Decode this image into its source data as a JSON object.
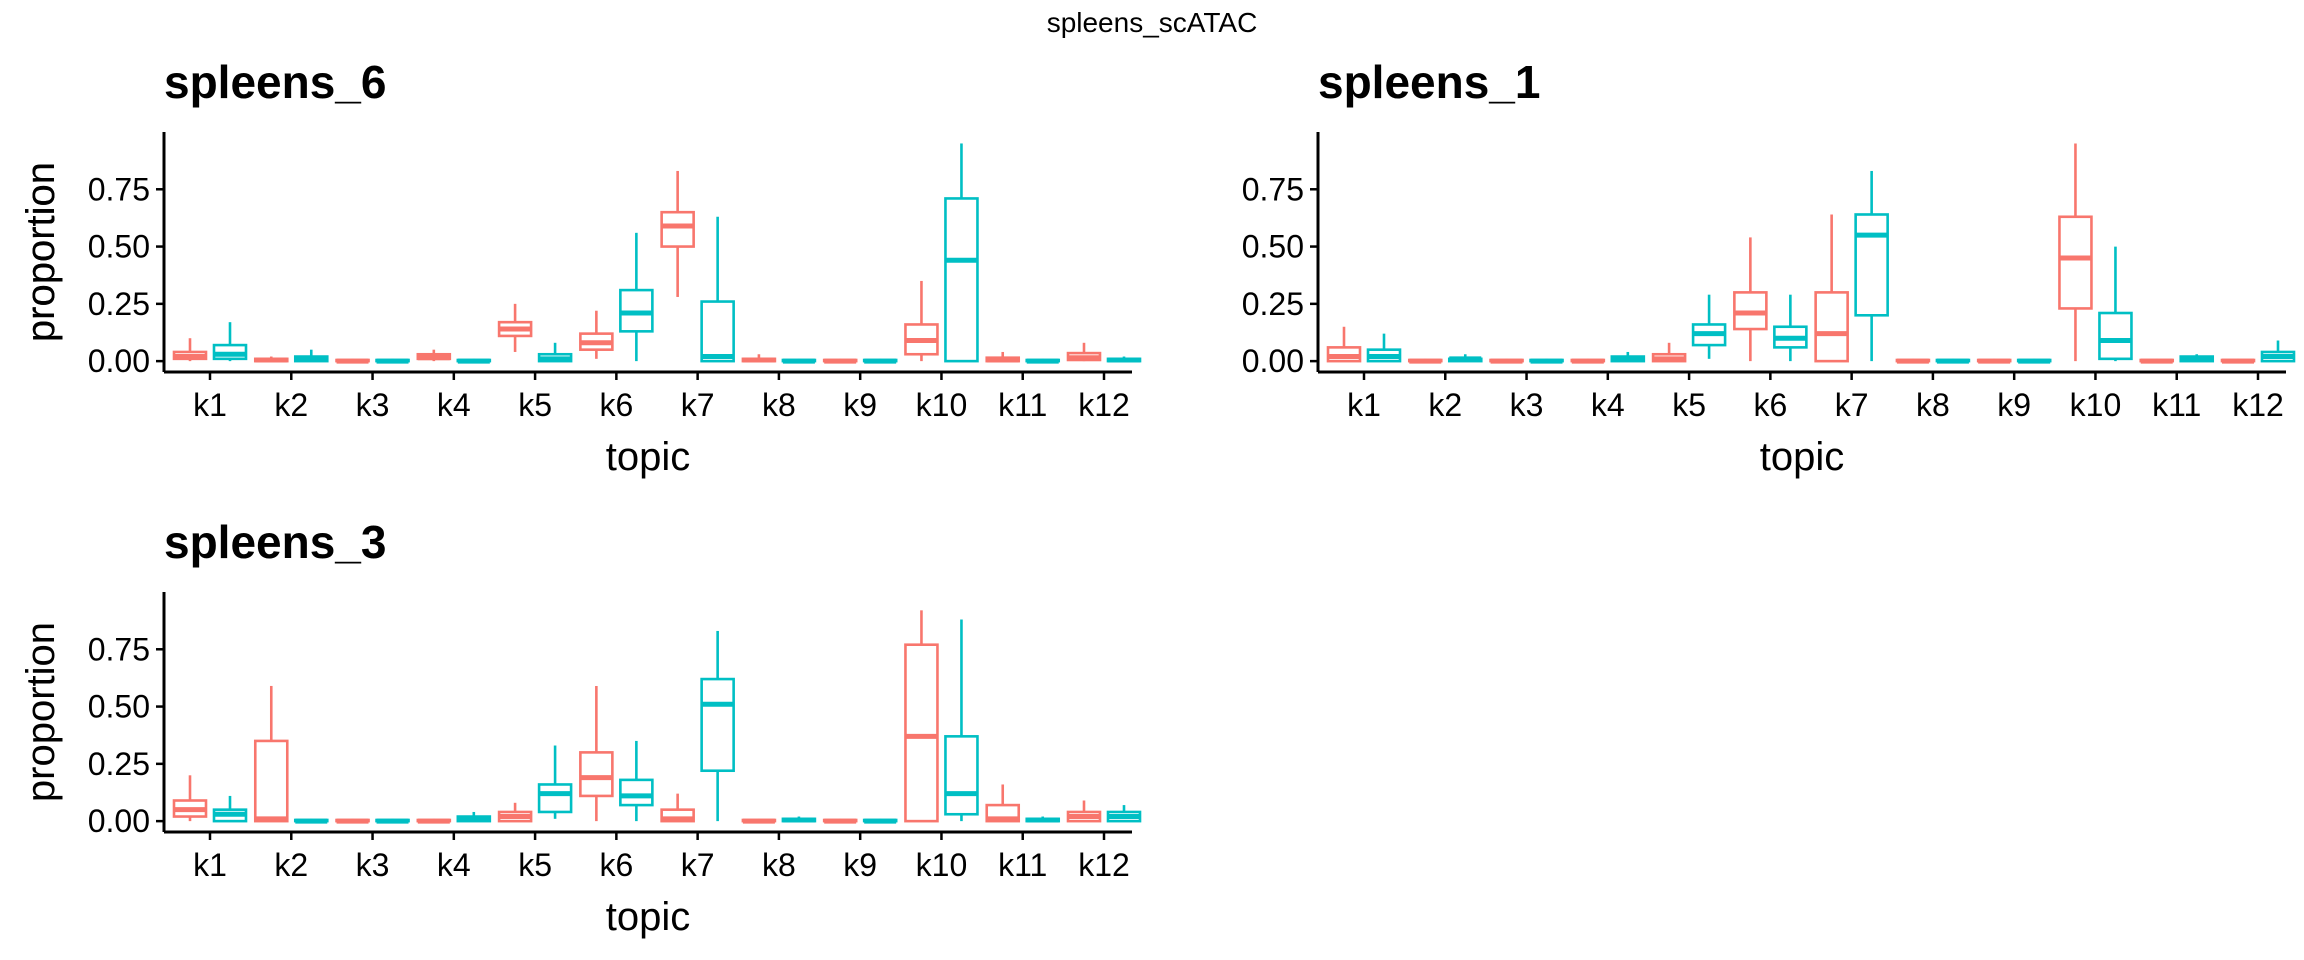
{
  "title": "spleens_scATAC",
  "colors": {
    "series_1": "#F8766D",
    "series_2": "#00BFC4",
    "axis": "#000000"
  },
  "chart_data": [
    {
      "type": "boxplot",
      "title": "spleens_6",
      "xlabel": "topic",
      "ylabel": "proportion",
      "categories": [
        "k1",
        "k2",
        "k3",
        "k4",
        "k5",
        "k6",
        "k7",
        "k8",
        "k9",
        "k10",
        "k11",
        "k12"
      ],
      "yticks": [
        "0.00",
        "0.25",
        "0.50",
        "0.75"
      ],
      "ylim": [
        -0.03,
        1.0
      ],
      "grid": false,
      "legend": "none",
      "series": [
        {
          "color": "#F8766D",
          "boxes": [
            {
              "min": 0.0,
              "q1": 0.01,
              "median": 0.02,
              "q3": 0.04,
              "max": 0.1
            },
            {
              "min": 0.0,
              "q1": 0.0,
              "median": 0.005,
              "q3": 0.01,
              "max": 0.02
            },
            {
              "min": 0.0,
              "q1": 0.0,
              "median": 0.0,
              "q3": 0.005,
              "max": 0.01
            },
            {
              "min": 0.0,
              "q1": 0.01,
              "median": 0.015,
              "q3": 0.03,
              "max": 0.05
            },
            {
              "min": 0.04,
              "q1": 0.11,
              "median": 0.14,
              "q3": 0.17,
              "max": 0.25
            },
            {
              "min": 0.01,
              "q1": 0.05,
              "median": 0.08,
              "q3": 0.12,
              "max": 0.22
            },
            {
              "min": 0.28,
              "q1": 0.5,
              "median": 0.59,
              "q3": 0.65,
              "max": 0.83
            },
            {
              "min": 0.0,
              "q1": 0.0,
              "median": 0.005,
              "q3": 0.01,
              "max": 0.03
            },
            {
              "min": 0.0,
              "q1": 0.0,
              "median": 0.0,
              "q3": 0.005,
              "max": 0.01
            },
            {
              "min": 0.0,
              "q1": 0.03,
              "median": 0.09,
              "q3": 0.16,
              "max": 0.35
            },
            {
              "min": 0.0,
              "q1": 0.0,
              "median": 0.005,
              "q3": 0.015,
              "max": 0.04
            },
            {
              "min": 0.0,
              "q1": 0.005,
              "median": 0.015,
              "q3": 0.035,
              "max": 0.08
            }
          ]
        },
        {
          "color": "#00BFC4",
          "boxes": [
            {
              "min": 0.0,
              "q1": 0.01,
              "median": 0.03,
              "q3": 0.07,
              "max": 0.17
            },
            {
              "min": 0.0,
              "q1": 0.0,
              "median": 0.01,
              "q3": 0.02,
              "max": 0.05
            },
            {
              "min": 0.0,
              "q1": 0.0,
              "median": 0.0,
              "q3": 0.005,
              "max": 0.01
            },
            {
              "min": 0.0,
              "q1": 0.0,
              "median": 0.0,
              "q3": 0.005,
              "max": 0.01
            },
            {
              "min": 0.0,
              "q1": 0.0,
              "median": 0.01,
              "q3": 0.03,
              "max": 0.08
            },
            {
              "min": 0.0,
              "q1": 0.13,
              "median": 0.21,
              "q3": 0.31,
              "max": 0.56
            },
            {
              "min": 0.0,
              "q1": 0.0,
              "median": 0.02,
              "q3": 0.26,
              "max": 0.63
            },
            {
              "min": 0.0,
              "q1": 0.0,
              "median": 0.0,
              "q3": 0.005,
              "max": 0.01
            },
            {
              "min": 0.0,
              "q1": 0.0,
              "median": 0.0,
              "q3": 0.005,
              "max": 0.01
            },
            {
              "min": 0.0,
              "q1": 0.0,
              "median": 0.44,
              "q3": 0.71,
              "max": 0.95
            },
            {
              "min": 0.0,
              "q1": 0.0,
              "median": 0.0,
              "q3": 0.005,
              "max": 0.01
            },
            {
              "min": 0.0,
              "q1": 0.0,
              "median": 0.005,
              "q3": 0.01,
              "max": 0.02
            }
          ]
        }
      ]
    },
    {
      "type": "boxplot",
      "title": "spleens_1",
      "xlabel": "topic",
      "ylabel": "proportion",
      "categories": [
        "k1",
        "k2",
        "k3",
        "k4",
        "k5",
        "k6",
        "k7",
        "k8",
        "k9",
        "k10",
        "k11",
        "k12"
      ],
      "yticks": [
        "0.00",
        "0.25",
        "0.50",
        "0.75"
      ],
      "ylim": [
        -0.03,
        1.0
      ],
      "grid": false,
      "legend": "none",
      "series": [
        {
          "color": "#F8766D",
          "boxes": [
            {
              "min": 0.0,
              "q1": 0.0,
              "median": 0.02,
              "q3": 0.06,
              "max": 0.15
            },
            {
              "min": 0.0,
              "q1": 0.0,
              "median": 0.0,
              "q3": 0.005,
              "max": 0.01
            },
            {
              "min": 0.0,
              "q1": 0.0,
              "median": 0.0,
              "q3": 0.005,
              "max": 0.01
            },
            {
              "min": 0.0,
              "q1": 0.0,
              "median": 0.0,
              "q3": 0.005,
              "max": 0.01
            },
            {
              "min": 0.0,
              "q1": 0.0,
              "median": 0.01,
              "q3": 0.03,
              "max": 0.08
            },
            {
              "min": 0.0,
              "q1": 0.14,
              "median": 0.21,
              "q3": 0.3,
              "max": 0.54
            },
            {
              "min": 0.0,
              "q1": 0.0,
              "median": 0.12,
              "q3": 0.3,
              "max": 0.64
            },
            {
              "min": 0.0,
              "q1": 0.0,
              "median": 0.0,
              "q3": 0.005,
              "max": 0.01
            },
            {
              "min": 0.0,
              "q1": 0.0,
              "median": 0.0,
              "q3": 0.005,
              "max": 0.01
            },
            {
              "min": 0.0,
              "q1": 0.23,
              "median": 0.45,
              "q3": 0.63,
              "max": 0.95
            },
            {
              "min": 0.0,
              "q1": 0.0,
              "median": 0.0,
              "q3": 0.005,
              "max": 0.01
            },
            {
              "min": 0.0,
              "q1": 0.0,
              "median": 0.0,
              "q3": 0.005,
              "max": 0.01
            }
          ]
        },
        {
          "color": "#00BFC4",
          "boxes": [
            {
              "min": 0.0,
              "q1": 0.0,
              "median": 0.02,
              "q3": 0.05,
              "max": 0.12
            },
            {
              "min": 0.0,
              "q1": 0.0,
              "median": 0.01,
              "q3": 0.01,
              "max": 0.03
            },
            {
              "min": 0.0,
              "q1": 0.0,
              "median": 0.0,
              "q3": 0.005,
              "max": 0.01
            },
            {
              "min": 0.0,
              "q1": 0.0,
              "median": 0.01,
              "q3": 0.02,
              "max": 0.04
            },
            {
              "min": 0.01,
              "q1": 0.07,
              "median": 0.12,
              "q3": 0.16,
              "max": 0.29
            },
            {
              "min": 0.0,
              "q1": 0.06,
              "median": 0.1,
              "q3": 0.15,
              "max": 0.29
            },
            {
              "min": 0.0,
              "q1": 0.2,
              "median": 0.55,
              "q3": 0.64,
              "max": 0.83
            },
            {
              "min": 0.0,
              "q1": 0.0,
              "median": 0.0,
              "q3": 0.005,
              "max": 0.01
            },
            {
              "min": 0.0,
              "q1": 0.0,
              "median": 0.0,
              "q3": 0.005,
              "max": 0.01
            },
            {
              "min": 0.0,
              "q1": 0.01,
              "median": 0.09,
              "q3": 0.21,
              "max": 0.5
            },
            {
              "min": 0.0,
              "q1": 0.0,
              "median": 0.01,
              "q3": 0.02,
              "max": 0.03
            },
            {
              "min": 0.0,
              "q1": 0.0,
              "median": 0.02,
              "q3": 0.04,
              "max": 0.09
            }
          ]
        }
      ]
    },
    {
      "type": "boxplot",
      "title": "spleens_3",
      "xlabel": "topic",
      "ylabel": "proportion",
      "categories": [
        "k1",
        "k2",
        "k3",
        "k4",
        "k5",
        "k6",
        "k7",
        "k8",
        "k9",
        "k10",
        "k11",
        "k12"
      ],
      "yticks": [
        "0.00",
        "0.25",
        "0.50",
        "0.75"
      ],
      "ylim": [
        -0.03,
        1.0
      ],
      "grid": false,
      "legend": "none",
      "series": [
        {
          "color": "#F8766D",
          "boxes": [
            {
              "min": 0.0,
              "q1": 0.02,
              "median": 0.05,
              "q3": 0.09,
              "max": 0.2
            },
            {
              "min": 0.0,
              "q1": 0.0,
              "median": 0.01,
              "q3": 0.35,
              "max": 0.59
            },
            {
              "min": 0.0,
              "q1": 0.0,
              "median": 0.0,
              "q3": 0.005,
              "max": 0.01
            },
            {
              "min": 0.0,
              "q1": 0.0,
              "median": 0.0,
              "q3": 0.005,
              "max": 0.01
            },
            {
              "min": 0.0,
              "q1": 0.0,
              "median": 0.02,
              "q3": 0.04,
              "max": 0.08
            },
            {
              "min": 0.0,
              "q1": 0.11,
              "median": 0.19,
              "q3": 0.3,
              "max": 0.59
            },
            {
              "min": 0.0,
              "q1": 0.0,
              "median": 0.01,
              "q3": 0.05,
              "max": 0.12
            },
            {
              "min": 0.0,
              "q1": 0.0,
              "median": 0.0,
              "q3": 0.005,
              "max": 0.01
            },
            {
              "min": 0.0,
              "q1": 0.0,
              "median": 0.0,
              "q3": 0.005,
              "max": 0.01
            },
            {
              "min": 0.0,
              "q1": 0.0,
              "median": 0.37,
              "q3": 0.77,
              "max": 0.92
            },
            {
              "min": 0.0,
              "q1": 0.0,
              "median": 0.01,
              "q3": 0.07,
              "max": 0.16
            },
            {
              "min": 0.0,
              "q1": 0.0,
              "median": 0.02,
              "q3": 0.04,
              "max": 0.09
            }
          ]
        },
        {
          "color": "#00BFC4",
          "boxes": [
            {
              "min": 0.0,
              "q1": 0.0,
              "median": 0.03,
              "q3": 0.05,
              "max": 0.11
            },
            {
              "min": 0.0,
              "q1": 0.0,
              "median": 0.0,
              "q3": 0.005,
              "max": 0.01
            },
            {
              "min": 0.0,
              "q1": 0.0,
              "median": 0.0,
              "q3": 0.005,
              "max": 0.01
            },
            {
              "min": 0.0,
              "q1": 0.0,
              "median": 0.01,
              "q3": 0.02,
              "max": 0.04
            },
            {
              "min": 0.01,
              "q1": 0.04,
              "median": 0.12,
              "q3": 0.16,
              "max": 0.33
            },
            {
              "min": 0.0,
              "q1": 0.07,
              "median": 0.11,
              "q3": 0.18,
              "max": 0.35
            },
            {
              "min": 0.0,
              "q1": 0.22,
              "median": 0.51,
              "q3": 0.62,
              "max": 0.83
            },
            {
              "min": 0.0,
              "q1": 0.0,
              "median": 0.005,
              "q3": 0.01,
              "max": 0.02
            },
            {
              "min": 0.0,
              "q1": 0.0,
              "median": 0.0,
              "q3": 0.005,
              "max": 0.01
            },
            {
              "min": 0.0,
              "q1": 0.03,
              "median": 0.12,
              "q3": 0.37,
              "max": 0.88
            },
            {
              "min": 0.0,
              "q1": 0.0,
              "median": 0.005,
              "q3": 0.01,
              "max": 0.02
            },
            {
              "min": 0.0,
              "q1": 0.0,
              "median": 0.02,
              "q3": 0.04,
              "max": 0.07
            }
          ]
        }
      ]
    }
  ]
}
